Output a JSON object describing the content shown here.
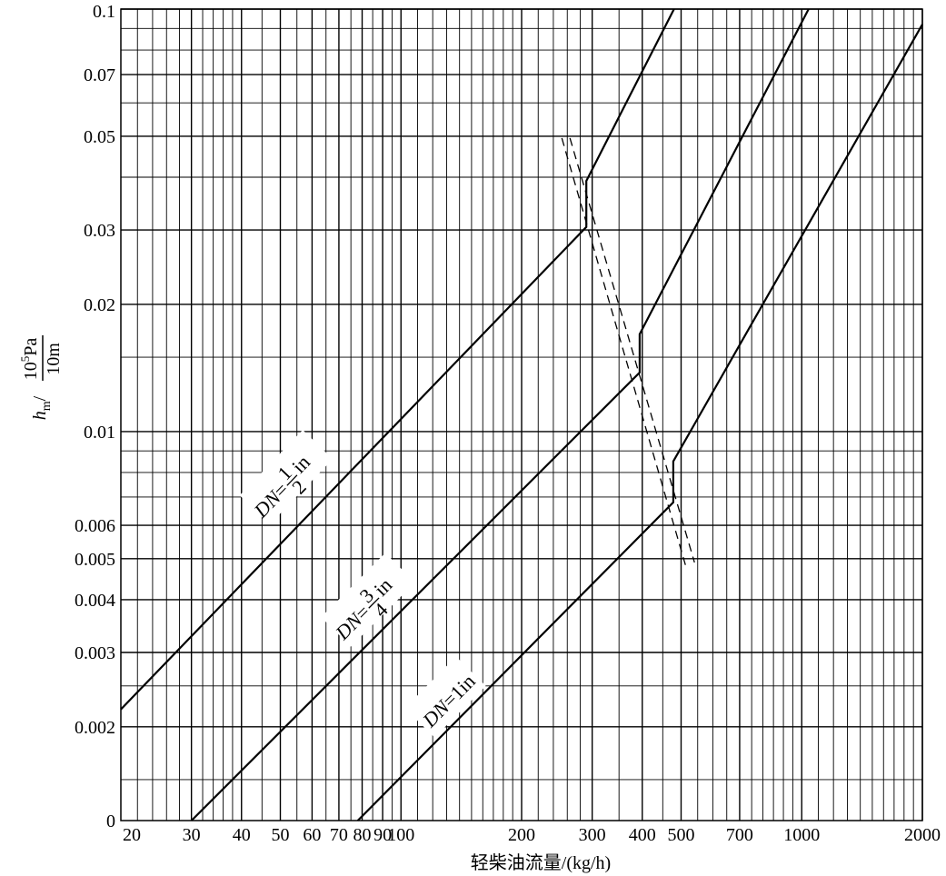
{
  "chart_data": {
    "type": "line",
    "x_scale": "log",
    "y_scale": "log",
    "xlabel": "轻柴油流量/(kg/h)",
    "ylabel": {
      "symbol": "h",
      "symbol_sub": "m",
      "numerator": "10",
      "numerator_sup": "5",
      "numerator_unit": "Pa",
      "denominator": "10m"
    },
    "xlim": [
      20,
      2000
    ],
    "ylim": [
      0.0012,
      0.1
    ],
    "x_ticks": [
      {
        "v": 20,
        "label": "20"
      },
      {
        "v": 30,
        "label": "30"
      },
      {
        "v": 40,
        "label": "40"
      },
      {
        "v": 50,
        "label": "50"
      },
      {
        "v": 60,
        "label": "60"
      },
      {
        "v": 70,
        "label": "70"
      },
      {
        "v": 80,
        "label": "80"
      },
      {
        "v": 90,
        "label": "90"
      },
      {
        "v": 100,
        "label": "100"
      },
      {
        "v": 200,
        "label": "200"
      },
      {
        "v": 300,
        "label": "300"
      },
      {
        "v": 400,
        "label": "400"
      },
      {
        "v": 500,
        "label": "500"
      },
      {
        "v": 700,
        "label": "700"
      },
      {
        "v": 1000,
        "label": "1000"
      },
      {
        "v": 2000,
        "label": "2000"
      }
    ],
    "y_ticks": [
      {
        "v": 0.1,
        "label": "0.1"
      },
      {
        "v": 0.07,
        "label": "0.07"
      },
      {
        "v": 0.05,
        "label": "0.05"
      },
      {
        "v": 0.03,
        "label": "0.03"
      },
      {
        "v": 0.02,
        "label": "0.02"
      },
      {
        "v": 0.01,
        "label": "0.01"
      },
      {
        "v": 0.006,
        "label": "0.006"
      },
      {
        "v": 0.005,
        "label": "0.005"
      },
      {
        "v": 0.004,
        "label": "0.004"
      },
      {
        "v": 0.003,
        "label": "0.003"
      },
      {
        "v": 0.002,
        "label": "0.002"
      },
      {
        "v": 0.0012,
        "label": "0"
      }
    ],
    "x_grid": [
      22,
      24,
      26,
      28,
      30,
      32,
      34,
      36,
      38,
      40,
      45,
      50,
      55,
      60,
      65,
      70,
      75,
      80,
      85,
      90,
      95,
      100,
      110,
      120,
      130,
      140,
      150,
      160,
      170,
      180,
      190,
      200,
      220,
      240,
      260,
      280,
      300,
      350,
      400,
      450,
      500,
      550,
      600,
      650,
      700,
      750,
      800,
      850,
      900,
      950,
      1000,
      1100,
      1200,
      1300,
      1400,
      1500,
      1600,
      1700,
      1800,
      1900,
      2000
    ],
    "y_grid": [
      0.0015,
      0.002,
      0.0025,
      0.003,
      0.004,
      0.005,
      0.006,
      0.007,
      0.008,
      0.009,
      0.01,
      0.015,
      0.02,
      0.03,
      0.04,
      0.05,
      0.06,
      0.07,
      0.08,
      0.09,
      0.1
    ],
    "series": [
      {
        "name": "DN=1/2in",
        "label": {
          "prefix": "DN",
          "eq": "=",
          "num": "1",
          "den": "2",
          "unit": "in"
        },
        "points": [
          [
            20,
            0.0022
          ],
          [
            290,
            0.0305
          ],
          [
            290,
            0.0392
          ],
          [
            480,
            0.1
          ]
        ]
      },
      {
        "name": "DN=3/4in",
        "label": {
          "prefix": "DN",
          "eq": "=",
          "num": "3",
          "den": "4",
          "unit": "in"
        },
        "points": [
          [
            30,
            0.0012
          ],
          [
            394,
            0.0138
          ],
          [
            394,
            0.017
          ],
          [
            1040,
            0.1
          ]
        ]
      },
      {
        "name": "DN=1in",
        "label": {
          "prefix": "DN",
          "eq": "=",
          "text": "1in"
        },
        "points": [
          [
            78,
            0.0012
          ],
          [
            478,
            0.0068
          ],
          [
            478,
            0.0085
          ],
          [
            2000,
            0.092
          ]
        ]
      }
    ],
    "dashed_boundaries": [
      [
        [
          252,
          0.0495
        ],
        [
          517,
          0.0047
        ]
      ],
      [
        [
          264,
          0.0495
        ],
        [
          540,
          0.0049
        ]
      ]
    ]
  }
}
